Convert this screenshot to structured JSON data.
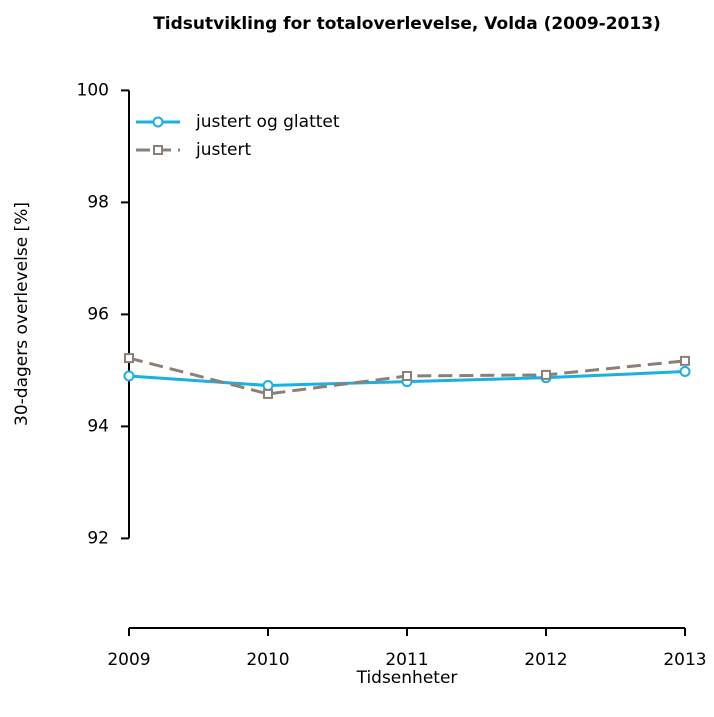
{
  "chart_data": {
    "type": "line",
    "title": "Tidsutvikling for totaloverlevelse, Volda (2009-2013)",
    "x_label": "Tidsenheter",
    "y_label": "30-dagers overlevelse [%]",
    "x": [
      2009,
      2010,
      2011,
      2012,
      2013
    ],
    "series": [
      {
        "name": "justert og glattet",
        "color": "#1ab0e0",
        "marker": "circle",
        "dash": "solid",
        "values": [
          94.9,
          94.73,
          94.8,
          94.87,
          94.98
        ]
      },
      {
        "name": "justert",
        "color": "#8c7f78",
        "marker": "square",
        "dash": "dashed",
        "values": [
          95.22,
          94.58,
          94.9,
          94.92,
          95.17
        ]
      }
    ],
    "xlim": [
      2009,
      2013
    ],
    "xticks": [
      2009,
      2010,
      2011,
      2012,
      2013
    ],
    "ylim": [
      90.4,
      100.4
    ],
    "yticks": [
      92,
      94,
      96,
      98,
      100
    ],
    "grid": false,
    "legend": "top-left"
  }
}
